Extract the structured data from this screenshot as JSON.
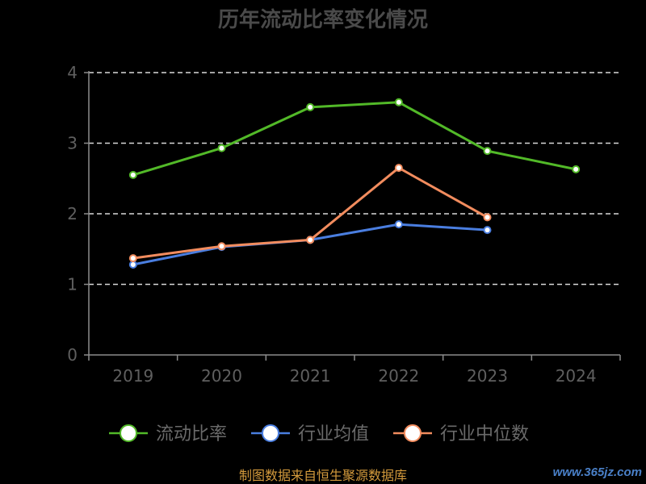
{
  "chart_data": {
    "type": "line",
    "title": "历年流动比率变化情况",
    "categories": [
      "2019",
      "2020",
      "2021",
      "2022",
      "2023",
      "2024"
    ],
    "series": [
      {
        "name": "流动比率",
        "values": [
          2.55,
          2.93,
          3.51,
          3.58,
          2.89,
          2.63
        ],
        "color": "#52b928"
      },
      {
        "name": "行业均值",
        "values": [
          1.28,
          1.53,
          1.63,
          1.85,
          1.77,
          null
        ],
        "color": "#4a7ee0"
      },
      {
        "name": "行业中位数",
        "values": [
          1.37,
          1.54,
          1.63,
          2.65,
          1.95,
          null
        ],
        "color": "#f28c5e"
      }
    ],
    "ylim": [
      0,
      4
    ],
    "yticks": [
      0,
      1,
      2,
      3,
      4
    ],
    "xlabel": "",
    "ylabel": "",
    "grid": true,
    "legend": "bottom-center"
  },
  "colors": {
    "background": "#000000",
    "title": "#4a4a4a",
    "tick_label": "#5f5f5f",
    "grid": "#d9d9d9",
    "axis": "#8c8c8c",
    "legend_label": "#6a6a6a",
    "source": "#d39a3c",
    "watermark": "#4a80c8"
  },
  "source": "制图数据来自恒生聚源数据库",
  "watermark": "www.365jz.com"
}
